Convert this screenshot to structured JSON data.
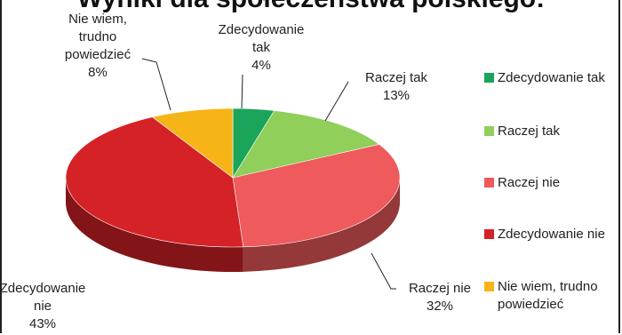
{
  "chart_data": {
    "type": "pie",
    "title": "Wyniki dla społeczeństwa polskiego:",
    "legend_position": "right",
    "slices": [
      {
        "name": "Zdecydowanie tak",
        "label": [
          "Zdecydowanie",
          "tak"
        ],
        "percent_text": "4%",
        "value": 4,
        "color": "#1aa55a"
      },
      {
        "name": "Raczej tak",
        "label": [
          "Raczej tak"
        ],
        "percent_text": "13%",
        "value": 13,
        "color": "#8fcf5a"
      },
      {
        "name": "Raczej nie",
        "label": [
          "Raczej nie"
        ],
        "percent_text": "32%",
        "value": 32,
        "color": "#ef5a5c"
      },
      {
        "name": "Zdecydowanie nie",
        "label": [
          "Zdecydowanie",
          "nie"
        ],
        "percent_text": "43%",
        "value": 43,
        "color": "#d42226"
      },
      {
        "name": "Nie wiem, trudno powiedzieć",
        "label": [
          "Nie wiem,",
          "trudno",
          "powiedzieć"
        ],
        "percent_text": "8%",
        "value": 8,
        "color": "#f7b417"
      }
    ],
    "legend": [
      {
        "text": [
          "Zdecydowanie tak"
        ],
        "color": "#1aa55a"
      },
      {
        "text": [
          "Raczej tak"
        ],
        "color": "#8fcf5a"
      },
      {
        "text": [
          "Raczej nie"
        ],
        "color": "#ef5a5c"
      },
      {
        "text": [
          "Zdecydowanie nie"
        ],
        "color": "#d42226"
      },
      {
        "text": [
          "Nie wiem, trudno",
          "powiedzieć"
        ],
        "color": "#f7b417"
      }
    ]
  }
}
